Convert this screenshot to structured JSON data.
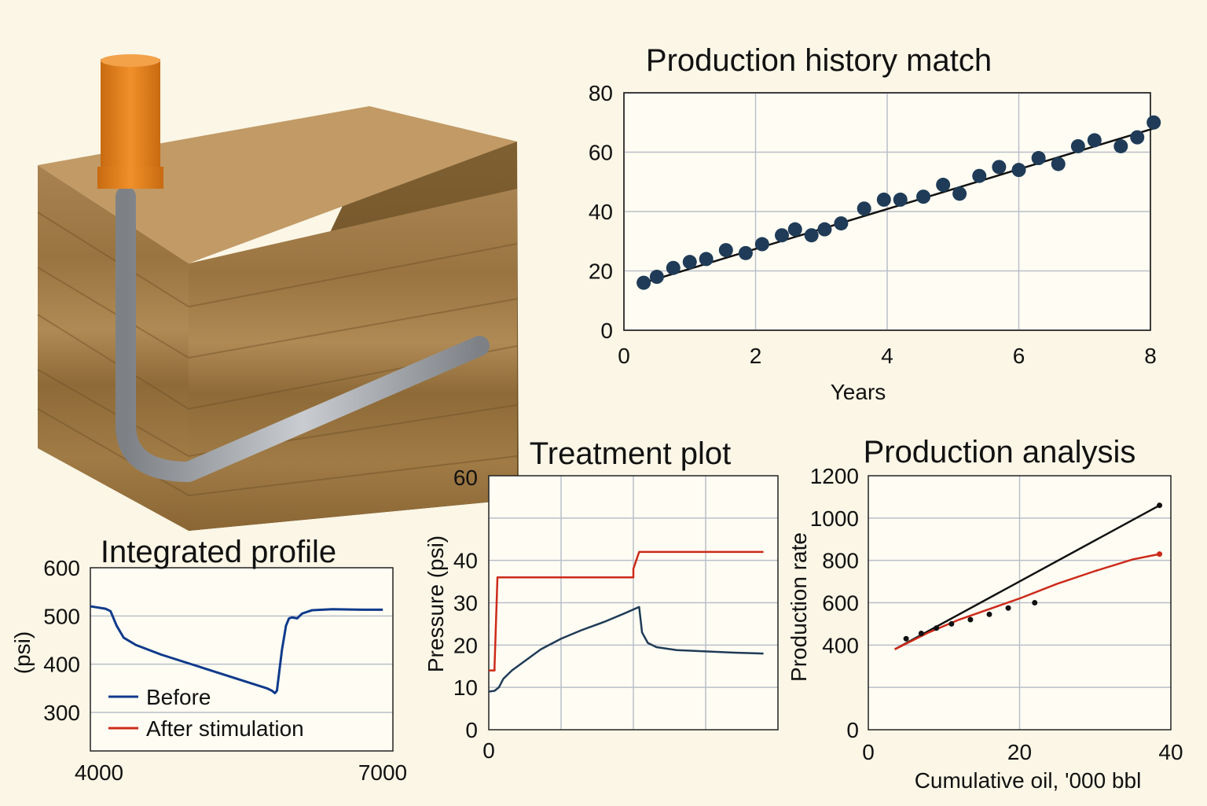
{
  "colors": {
    "background": "#fbf6e6",
    "grid": "#b9bec9",
    "navy": "#0f3a8c",
    "dark_navy": "#1f3b57",
    "red": "#cc2a1a",
    "black": "#111111",
    "orange_casing": "#e8801a",
    "pipe_gray": "#a7abb0",
    "earth_top": "#b48a55",
    "earth_front": "#9a7440",
    "earth_side": "#7a5a2c"
  },
  "illustration": {
    "icon": "wellbore-block-diagram-icon"
  },
  "chart_data": [
    {
      "id": "history",
      "type": "scatter",
      "title": "Production history match",
      "xlabel": "Years",
      "ylabel": "",
      "xlim": [
        0,
        8
      ],
      "ylim": [
        0,
        80
      ],
      "xticks": [
        "0",
        "2",
        "4",
        "6",
        "8"
      ],
      "yticks": [
        "0",
        "20",
        "40",
        "60",
        "80"
      ],
      "grid": true,
      "series": [
        {
          "type": "scatter",
          "x": [
            0.3,
            0.5,
            0.75,
            1.0,
            1.25,
            1.55,
            1.85,
            2.1,
            2.4,
            2.6,
            2.85,
            3.05,
            3.3,
            3.65,
            3.95,
            4.2,
            4.55,
            4.85,
            5.1,
            5.4,
            5.7,
            6.0,
            6.3,
            6.6,
            6.9,
            7.15,
            7.55,
            7.8,
            8.05
          ],
          "y": [
            16,
            18,
            21,
            23,
            24,
            27,
            26,
            29,
            32,
            34,
            32,
            34,
            36,
            41,
            44,
            44,
            45,
            49,
            46,
            52,
            55,
            54,
            58,
            56,
            62,
            64,
            62,
            65,
            70
          ]
        },
        {
          "type": "line",
          "x": [
            0.3,
            8.05
          ],
          "y": [
            16,
            68
          ]
        }
      ]
    },
    {
      "id": "integrated",
      "type": "line",
      "title": "Integrated profile",
      "xlabel": "",
      "ylabel": "(psi)",
      "xlim": [
        4000,
        7000
      ],
      "ylim": [
        220,
        600
      ],
      "xticks": [
        "4000",
        "7000"
      ],
      "yticks": [
        "300",
        "400",
        "500",
        "600"
      ],
      "grid": true,
      "legend_position": "bottom-left",
      "series": [
        {
          "name": "Before",
          "x": [
            4000,
            4150,
            4200,
            4260,
            4330,
            4450,
            4700,
            5000,
            5300,
            5600,
            5750,
            5800,
            5830,
            5850,
            5900,
            5940,
            5970,
            6000,
            6050,
            6100,
            6200,
            6400,
            6700,
            6900
          ],
          "y": [
            520,
            515,
            510,
            480,
            455,
            440,
            420,
            400,
            380,
            360,
            350,
            345,
            340,
            345,
            430,
            480,
            495,
            497,
            495,
            505,
            512,
            514,
            513,
            513
          ]
        },
        {
          "name": "After stimulation",
          "x": [],
          "y": []
        }
      ]
    },
    {
      "id": "treatment",
      "type": "line",
      "title": "Treatment plot",
      "xlabel": "",
      "ylabel": "Pressure (psi)",
      "xlim": [
        0,
        100
      ],
      "ylim": [
        0,
        60
      ],
      "xticks": [
        "0"
      ],
      "yticks": [
        "0",
        "10",
        "20",
        "30",
        "40",
        "60"
      ],
      "grid": true,
      "series": [
        {
          "color": "red",
          "x": [
            0,
            2,
            2,
            3,
            50,
            50,
            52,
            60,
            80,
            95
          ],
          "y": [
            14,
            14,
            15,
            36,
            36,
            38,
            42,
            42,
            42,
            42
          ]
        },
        {
          "color": "navy",
          "x": [
            0,
            2,
            3.5,
            5,
            8,
            12,
            18,
            25,
            32,
            40,
            47,
            52,
            52.5,
            53,
            55,
            58,
            65,
            75,
            85,
            95
          ],
          "y": [
            9,
            9.2,
            10,
            12,
            14,
            16,
            19,
            21.5,
            23.5,
            25.5,
            27.5,
            29,
            26,
            23,
            20.5,
            19.5,
            18.8,
            18.5,
            18.2,
            18
          ]
        }
      ]
    },
    {
      "id": "analysis",
      "type": "line",
      "title": "Production analysis",
      "xlabel": "Cumulative oil, '000 bbl",
      "ylabel": "Production rate",
      "xlim": [
        0,
        40
      ],
      "ylim": [
        0,
        1200
      ],
      "xticks": [
        "0",
        "20",
        "40"
      ],
      "yticks": [
        "0",
        "400",
        "600",
        "800",
        "1000",
        "1200"
      ],
      "grid": true,
      "series": [
        {
          "type": "scatter",
          "x": [
            5,
            7,
            9,
            11,
            13.5,
            16,
            18.5,
            22,
            38.5
          ],
          "y": [
            430,
            455,
            480,
            500,
            520,
            545,
            575,
            600,
            1060
          ]
        },
        {
          "type": "line",
          "color": "black",
          "x": [
            3.5,
            38.5
          ],
          "y": [
            380,
            1060
          ]
        },
        {
          "type": "line",
          "color": "red",
          "x": [
            3.5,
            8,
            12,
            16,
            20,
            25,
            30,
            35,
            38.5
          ],
          "y": [
            380,
            460,
            520,
            570,
            620,
            690,
            750,
            805,
            830
          ]
        },
        {
          "type": "scatter",
          "color": "red",
          "x": [
            38.5
          ],
          "y": [
            830
          ]
        }
      ]
    }
  ]
}
